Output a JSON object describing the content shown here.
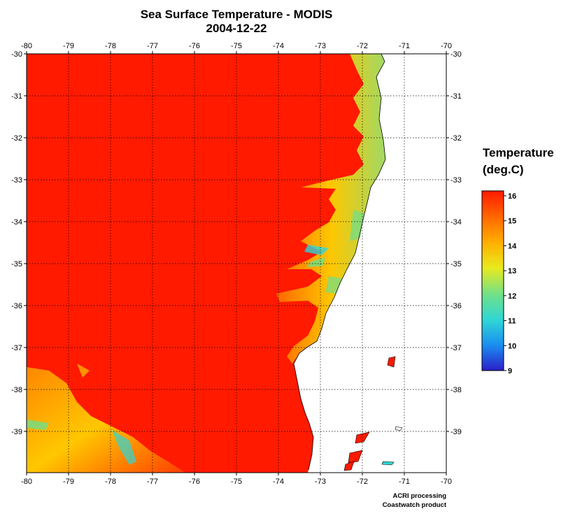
{
  "title": "Sea Surface Temperature - MODIS",
  "date": "2004-12-22",
  "x_ticks": [
    "-80",
    "-79",
    "-78",
    "-77",
    "-76",
    "-75",
    "-74",
    "-73",
    "-72",
    "-71",
    "-70"
  ],
  "y_ticks": [
    "-30",
    "-31",
    "-32",
    "-33",
    "-34",
    "-35",
    "-36",
    "-37",
    "-38",
    "-39"
  ],
  "colorbar": {
    "title_line1": "Temperature",
    "title_line2": "(deg.C)",
    "ticks": [
      "16",
      "15",
      "14",
      "13",
      "12",
      "11",
      "10",
      "9"
    ],
    "min": 9,
    "max": 16,
    "colors": [
      "#2b1fc8",
      "#1a8cf0",
      "#2fd6d6",
      "#6ee08a",
      "#e8ea1f",
      "#ffb000",
      "#ff6a00",
      "#ff1a00"
    ]
  },
  "credits": {
    "line1": "ACRI processing",
    "line2": "Coastwatch product"
  },
  "colors": {
    "ocean_warm": "#ff1a00",
    "land": "#ffffff",
    "grid": "#000000"
  }
}
